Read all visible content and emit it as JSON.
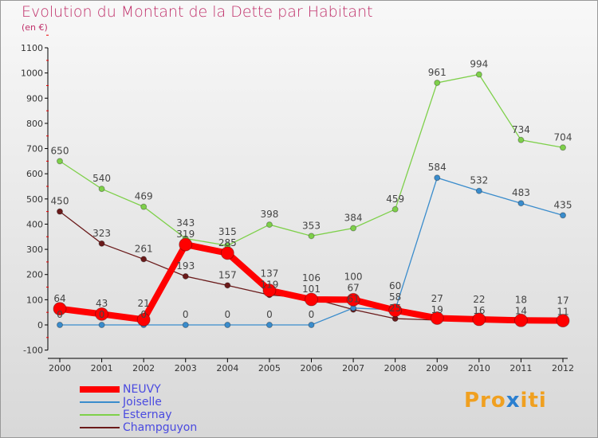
{
  "chart_data": {
    "type": "line",
    "title": "Evolution du Montant de la Dette par Habitant",
    "subtitle": "(en €)",
    "x": [
      "2000",
      "2001",
      "2002",
      "2003",
      "2004",
      "2005",
      "2006",
      "2007",
      "2008",
      "2009",
      "2010",
      "2011",
      "2012"
    ],
    "ylim": [
      -100,
      1100
    ],
    "yticks": [
      -100,
      0,
      100,
      200,
      300,
      400,
      500,
      600,
      700,
      800,
      900,
      1000,
      1100
    ],
    "grid": false,
    "legend_position": "bottom-left",
    "series": [
      {
        "name": "NEUVY",
        "color": "#ff0000",
        "values": [
          64,
          43,
          21,
          319,
          285,
          137,
          101,
          100,
          58,
          27,
          22,
          18,
          17
        ]
      },
      {
        "name": "Joiselle",
        "color": "#3a8ccc",
        "values": [
          0,
          0,
          0,
          0,
          0,
          0,
          0,
          67,
          60,
          584,
          532,
          483,
          435
        ]
      },
      {
        "name": "Esternay",
        "color": "#7ed04a",
        "values": [
          650,
          540,
          469,
          343,
          315,
          398,
          353,
          384,
          459,
          961,
          994,
          734,
          704
        ]
      },
      {
        "name": "Champguyon",
        "color": "#6a1a1a",
        "values": [
          450,
          323,
          261,
          193,
          157,
          119,
          106,
          61,
          25,
          19,
          16,
          14,
          11
        ]
      }
    ]
  },
  "logo": "Proxiti"
}
